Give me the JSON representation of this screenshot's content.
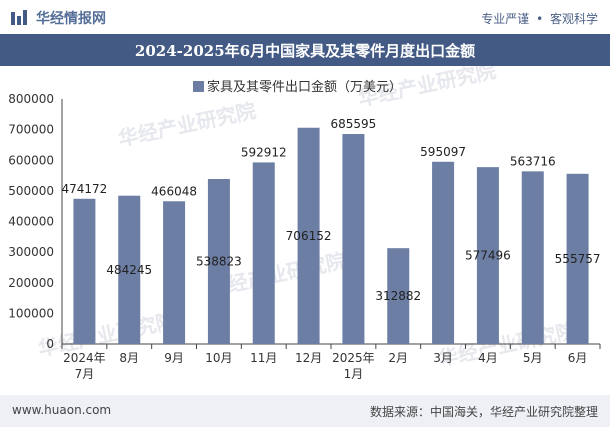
{
  "header": {
    "brand": "华经情报网",
    "tagline_left": "专业严谨",
    "tagline_right": "客观科学"
  },
  "title": "2024-2025年6月中国家具及其零件月度出口金额",
  "footer": {
    "website": "www.huaon.com",
    "source": "数据来源：中国海关，华经产业研究院整理"
  },
  "watermark": "华经产业研究院",
  "chart_data": {
    "type": "bar",
    "categories": [
      "2024年\n7月",
      "8月",
      "9月",
      "10月",
      "11月",
      "12月",
      "2025年\n1月",
      "2月",
      "3月",
      "4月",
      "5月",
      "6月"
    ],
    "series": [
      {
        "name": "家具及其零件出口金额（万美元）",
        "values": [
          474172,
          484245,
          466048,
          538823,
          592912,
          706152,
          685595,
          312882,
          595097,
          577496,
          563716,
          555757
        ],
        "color": "#6c7ea3"
      }
    ],
    "yticks": [
      0,
      100000,
      200000,
      300000,
      400000,
      500000,
      600000,
      700000,
      800000
    ],
    "ylim": [
      0,
      800000
    ],
    "label_position": [
      "top",
      "mid",
      "top",
      "mid",
      "top",
      "mid",
      "top",
      "mid",
      "top",
      "mid",
      "top",
      "mid"
    ],
    "legend_position": "top",
    "grid": false
  }
}
